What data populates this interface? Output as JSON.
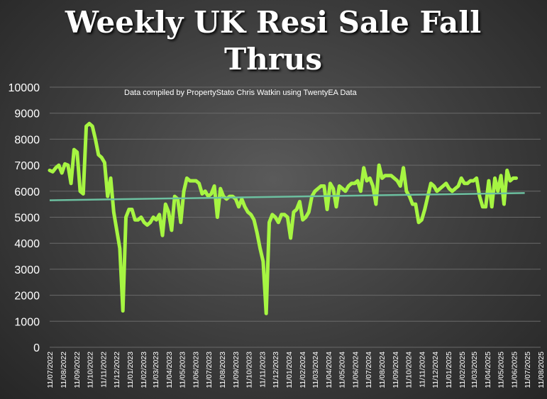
{
  "chart_data": {
    "type": "line",
    "title": "Weekly UK Resi Sale Fall Thrus",
    "subtitle": "Data compiled by PropertyStato Chris Watkin using TwentyEA Data",
    "x": [
      "11/07/2022",
      "18/07/2022",
      "25/07/2022",
      "01/08/2022",
      "08/08/2022",
      "15/08/2022",
      "22/08/2022",
      "29/08/2022",
      "05/09/2022",
      "12/09/2022",
      "19/09/2022",
      "26/09/2022",
      "03/10/2022",
      "10/10/2022",
      "17/10/2022",
      "24/10/2022",
      "31/10/2022",
      "07/11/2022",
      "14/11/2022",
      "21/11/2022",
      "28/11/2022",
      "05/12/2022",
      "12/12/2022",
      "19/12/2022",
      "26/12/2022",
      "02/01/2023",
      "09/01/2023",
      "16/01/2023",
      "23/01/2023",
      "30/01/2023",
      "06/02/2023",
      "13/02/2023",
      "20/02/2023",
      "27/02/2023",
      "06/03/2023",
      "13/03/2023",
      "20/03/2023",
      "27/03/2023",
      "03/04/2023",
      "10/04/2023",
      "17/04/2023",
      "24/04/2023",
      "01/05/2023",
      "08/05/2023",
      "15/05/2023",
      "22/05/2023",
      "29/05/2023",
      "05/06/2023",
      "12/06/2023",
      "19/06/2023",
      "26/06/2023",
      "03/07/2023",
      "10/07/2023",
      "17/07/2023",
      "24/07/2023",
      "31/07/2023",
      "07/08/2023",
      "14/08/2023",
      "21/08/2023",
      "28/08/2023",
      "04/09/2023",
      "11/09/2023",
      "18/09/2023",
      "25/09/2023",
      "02/10/2023",
      "09/10/2023",
      "16/10/2023",
      "23/10/2023",
      "30/10/2023",
      "06/11/2023",
      "13/11/2023",
      "20/11/2023",
      "27/11/2023",
      "04/12/2023",
      "11/12/2023",
      "18/12/2023",
      "25/12/2023",
      "01/01/2024",
      "08/01/2024",
      "15/01/2024",
      "22/01/2024",
      "29/01/2024",
      "05/02/2024",
      "12/02/2024",
      "19/02/2024",
      "26/02/2024",
      "04/03/2024",
      "11/03/2024",
      "18/03/2024",
      "25/03/2024",
      "01/04/2024",
      "08/04/2024",
      "15/04/2024",
      "22/04/2024",
      "29/04/2024",
      "06/05/2024",
      "13/05/2024",
      "20/05/2024",
      "27/05/2024",
      "03/06/2024",
      "10/06/2024",
      "17/06/2024",
      "24/06/2024",
      "01/07/2024",
      "08/07/2024",
      "15/07/2024",
      "22/07/2024",
      "29/07/2024",
      "05/08/2024",
      "12/08/2024",
      "19/08/2024",
      "26/08/2024",
      "02/09/2024",
      "09/09/2024",
      "16/09/2024",
      "23/09/2024",
      "30/09/2024",
      "07/10/2024",
      "14/10/2024",
      "21/10/2024",
      "28/10/2024",
      "04/11/2024",
      "11/11/2024",
      "18/11/2024",
      "25/11/2024",
      "02/12/2024",
      "09/12/2024",
      "16/12/2024",
      "23/12/2024",
      "30/12/2024",
      "06/01/2025",
      "13/01/2025",
      "20/01/2025",
      "27/01/2025",
      "03/02/2025",
      "10/02/2025",
      "17/02/2025",
      "24/02/2025",
      "03/03/2025",
      "10/03/2025",
      "17/03/2025",
      "24/03/2025",
      "31/03/2025",
      "07/04/2025",
      "14/04/2025",
      "21/04/2025",
      "28/04/2025",
      "05/05/2025",
      "12/05/2025",
      "19/05/2025",
      "26/05/2025",
      "02/06/2025",
      "09/06/2025",
      "16/06/2025"
    ],
    "series": [
      {
        "color": "#a6f542",
        "values": [
          6800,
          6750,
          6900,
          7000,
          6700,
          7050,
          7000,
          6300,
          7600,
          7500,
          6000,
          5900,
          8500,
          8600,
          8500,
          8000,
          7400,
          7300,
          7100,
          5800,
          6500,
          5200,
          4500,
          3800,
          1400,
          5000,
          5300,
          5300,
          4900,
          4900,
          5000,
          4800,
          4700,
          4800,
          5000,
          4900,
          5100,
          4300,
          5500,
          5200,
          4500,
          5800,
          5700,
          4800,
          6000,
          6500,
          6400,
          6400,
          6400,
          6300,
          5900,
          6000,
          5800,
          5900,
          6200,
          5000,
          6100,
          5800,
          5700,
          5800,
          5800,
          5700,
          5400,
          5700,
          5400,
          5200,
          5100,
          4900,
          4400,
          3800,
          3300,
          1300,
          4800,
          5100,
          5000,
          4800,
          5100,
          5100,
          5000,
          4200,
          5200,
          5300,
          5600,
          4900,
          5000,
          5200,
          5800,
          6000,
          6100,
          6200,
          6200,
          5300,
          6300,
          6100,
          5400,
          6200,
          6100,
          6000,
          6200,
          6300,
          6300,
          6400,
          6000,
          6900,
          6400,
          6500,
          6200,
          5500,
          7000,
          6500,
          6600,
          6600,
          6600,
          6500,
          6400,
          6200,
          6900,
          6000,
          5800,
          5500,
          5500,
          4800,
          4900,
          5300,
          5800,
          6300,
          6200,
          6000,
          6100,
          6200,
          6300,
          6100,
          6000,
          6100,
          6200,
          6500,
          6300,
          6300,
          6400,
          6400,
          6500,
          5800,
          5400,
          5400,
          6400,
          5400,
          6500,
          6000,
          6600,
          5500,
          6800,
          6400,
          6500,
          6500
        ]
      }
    ],
    "trendline": {
      "color": "#6cc0a0",
      "start": 5650,
      "end": 5930
    },
    "xlim": [
      "11/07/2022",
      "11/08/2025"
    ],
    "xticks": [
      "11/07/2022",
      "11/08/2022",
      "11/09/2022",
      "11/10/2022",
      "11/11/2022",
      "11/12/2022",
      "11/01/2023",
      "11/02/2023",
      "11/03/2023",
      "11/04/2023",
      "11/05/2023",
      "11/06/2023",
      "11/07/2023",
      "11/08/2023",
      "11/09/2023",
      "11/10/2023",
      "11/11/2023",
      "11/12/2023",
      "11/01/2024",
      "11/02/2024",
      "11/03/2024",
      "11/04/2024",
      "11/05/2024",
      "11/06/2024",
      "11/07/2024",
      "11/08/2024",
      "11/09/2024",
      "11/10/2024",
      "11/11/2024",
      "11/12/2024",
      "11/01/2025",
      "11/02/2025",
      "11/03/2025",
      "11/04/2025",
      "11/05/2025",
      "11/06/2025",
      "11/07/2025",
      "11/08/2025"
    ],
    "ylim": [
      0,
      10000
    ],
    "yticks": [
      0,
      1000,
      2000,
      3000,
      4000,
      5000,
      6000,
      7000,
      8000,
      9000,
      10000
    ],
    "grid": true
  }
}
